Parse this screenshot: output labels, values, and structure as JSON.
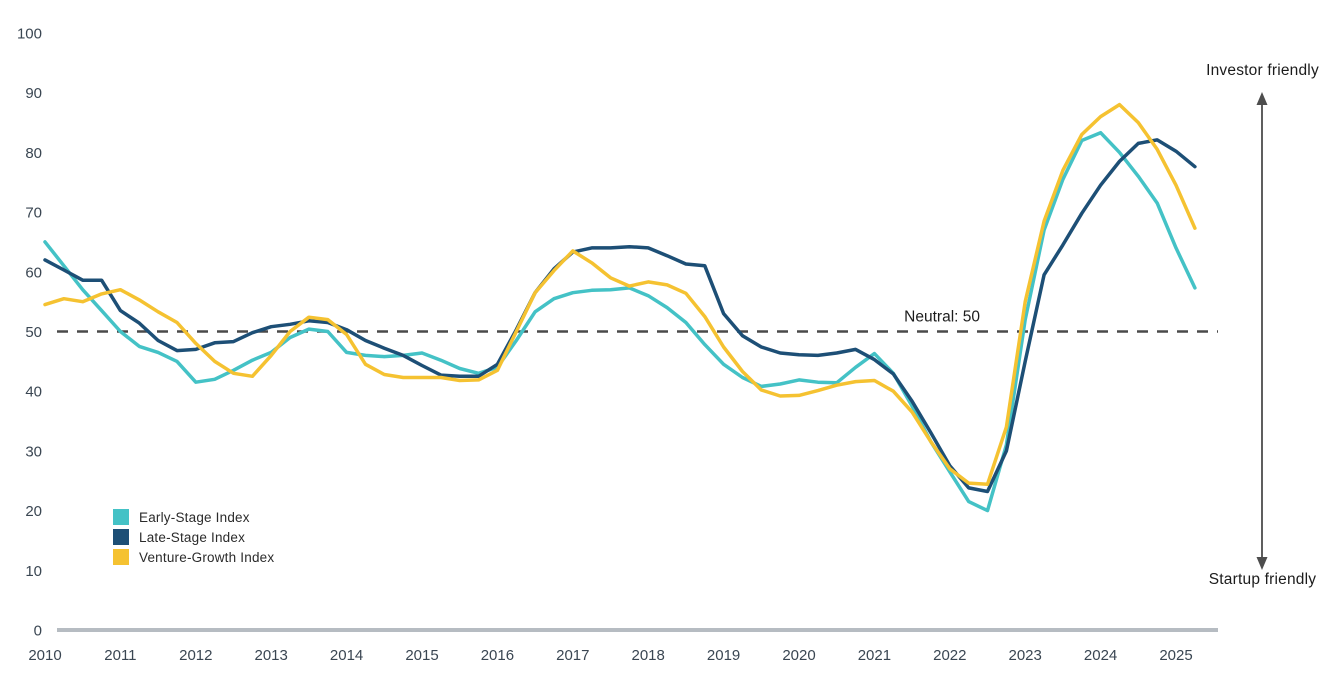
{
  "chart_data": {
    "type": "line",
    "title": "",
    "x_axis": {
      "years": [
        2010,
        2011,
        2012,
        2013,
        2014,
        2015,
        2016,
        2017,
        2018,
        2019,
        2020,
        2021,
        2022,
        2023,
        2024,
        2025
      ],
      "points_per_year": 4,
      "last_point": "2025 Q2"
    },
    "y_axis": {
      "min": 0,
      "max": 100,
      "ticks": [
        0,
        10,
        20,
        30,
        40,
        50,
        60,
        70,
        80,
        90,
        100
      ]
    },
    "grid": false,
    "legend_position": "bottom-left",
    "neutral_line": {
      "value": 50,
      "label": "Neutral: 50"
    },
    "annotations": {
      "top": "Investor friendly",
      "bottom": "Startup friendly"
    },
    "series": [
      {
        "name": "Early-Stage Index",
        "color": "#44C2C6",
        "values": [
          65,
          61,
          57,
          53.5,
          50,
          47.5,
          46.5,
          45,
          41.5,
          42,
          43.5,
          45.2,
          46.5,
          49,
          50.4,
          50,
          46.5,
          46,
          45.8,
          46,
          46.4,
          45.2,
          43.8,
          43,
          44,
          48.5,
          53.3,
          55.5,
          56.5,
          56.9,
          57,
          57.3,
          56,
          54,
          51.5,
          47.8,
          44.5,
          42.3,
          40.8,
          41.2,
          41.9,
          41.5,
          41.4,
          44,
          46.3,
          43,
          37.5,
          31.5,
          26.5,
          21.5,
          20,
          31,
          52,
          67,
          75.5,
          82,
          83.3,
          80,
          76,
          71.5,
          64,
          57.3
        ]
      },
      {
        "name": "Late-Stage Index",
        "color": "#1D4F76",
        "values": [
          62,
          60.3,
          58.6,
          58.6,
          53.5,
          51.4,
          48.5,
          46.8,
          47,
          48.1,
          48.3,
          49.8,
          50.8,
          51.2,
          51.8,
          51.5,
          50.3,
          48.5,
          47.2,
          46,
          44.3,
          42.7,
          42.5,
          42.5,
          44.5,
          50.3,
          56.5,
          60.5,
          63.3,
          64,
          64,
          64.2,
          64,
          62.7,
          61.3,
          61,
          53,
          49.3,
          47.4,
          46.4,
          46.1,
          46,
          46.4,
          47,
          45.3,
          42.9,
          38.3,
          33,
          27.5,
          23.8,
          23.2,
          30,
          45,
          59.5,
          64.5,
          69.8,
          74.5,
          78.5,
          81.5,
          82.1,
          80.2,
          77.6
        ]
      },
      {
        "name": "Venture-Growth Index",
        "color": "#F5C231",
        "values": [
          54.5,
          55.5,
          55,
          56.3,
          57,
          55.3,
          53.3,
          51.5,
          48,
          45,
          43,
          42.5,
          46,
          50,
          52.4,
          52,
          49.5,
          44.5,
          42.8,
          42.3,
          42.3,
          42.3,
          41.8,
          41.9,
          43.5,
          50,
          56.5,
          60.2,
          63.5,
          61.5,
          59,
          57.6,
          58.3,
          57.8,
          56.4,
          52.5,
          47.4,
          43.3,
          40.2,
          39.2,
          39.3,
          40.1,
          41,
          41.6,
          41.8,
          40,
          36.5,
          31.5,
          27,
          24.6,
          24.4,
          34,
          55,
          68.5,
          77,
          83,
          86,
          88,
          85,
          80.5,
          74.5,
          67.3
        ]
      }
    ]
  },
  "colors": {
    "background": "#ffffff",
    "axis_line": "#b6bcc2",
    "dashed_line": "#4a4a4a",
    "tick_text": "#3a4652",
    "annotation_text": "#1c1c1c",
    "arrow": "#4d4d4d"
  }
}
